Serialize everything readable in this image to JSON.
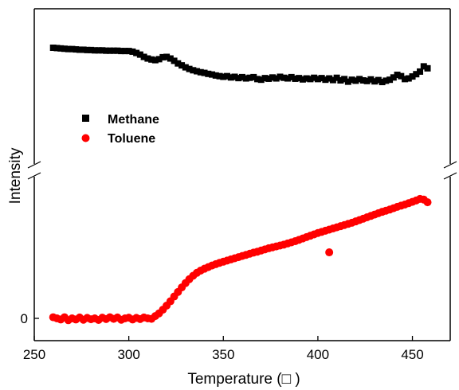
{
  "chart_data": {
    "type": "scatter",
    "title": "",
    "xlabel": "Temperature (□ )",
    "ylabel": "Intensity",
    "xlim": [
      250,
      470
    ],
    "xticks": [
      250,
      300,
      350,
      400,
      450
    ],
    "ytick_labels": [
      "0"
    ],
    "axis_break": true,
    "grid": false,
    "legend_position": "upper-left",
    "series": [
      {
        "name": "Methane",
        "marker": "square",
        "color": "#000000",
        "x": [
          260,
          262,
          264,
          266,
          268,
          270,
          272,
          274,
          276,
          278,
          280,
          282,
          284,
          286,
          288,
          290,
          292,
          294,
          296,
          298,
          300,
          302,
          304,
          306,
          308,
          310,
          312,
          314,
          316,
          318,
          320,
          322,
          324,
          326,
          328,
          330,
          332,
          334,
          336,
          338,
          340,
          342,
          344,
          346,
          348,
          350,
          352,
          354,
          356,
          358,
          360,
          362,
          364,
          366,
          368,
          370,
          372,
          374,
          376,
          378,
          380,
          382,
          384,
          386,
          388,
          390,
          392,
          394,
          396,
          398,
          400,
          402,
          404,
          406,
          408,
          410,
          412,
          414,
          416,
          418,
          420,
          422,
          424,
          426,
          428,
          430,
          432,
          434,
          436,
          438,
          440,
          442,
          444,
          446,
          448,
          450,
          452,
          454,
          456,
          458
        ],
        "y": [
          9.06,
          9.05,
          9.04,
          9.03,
          9.02,
          9.02,
          9.01,
          9.0,
          9.0,
          8.99,
          8.99,
          8.98,
          8.98,
          8.98,
          8.97,
          8.97,
          8.97,
          8.97,
          8.96,
          8.96,
          8.96,
          8.94,
          8.9,
          8.85,
          8.78,
          8.73,
          8.7,
          8.68,
          8.71,
          8.77,
          8.78,
          8.73,
          8.66,
          8.58,
          8.52,
          8.46,
          8.41,
          8.37,
          8.34,
          8.31,
          8.29,
          8.26,
          8.24,
          8.21,
          8.19,
          8.17,
          8.19,
          8.15,
          8.17,
          8.13,
          8.16,
          8.12,
          8.14,
          8.16,
          8.1,
          8.08,
          8.13,
          8.11,
          8.15,
          8.12,
          8.17,
          8.14,
          8.12,
          8.16,
          8.11,
          8.13,
          8.09,
          8.12,
          8.1,
          8.14,
          8.1,
          8.13,
          8.08,
          8.12,
          8.07,
          8.14,
          8.06,
          8.1,
          8.02,
          8.08,
          8.05,
          8.1,
          8.06,
          8.04,
          8.09,
          8.03,
          8.07,
          8.01,
          8.05,
          8.08,
          8.15,
          8.23,
          8.19,
          8.1,
          8.12,
          8.18,
          8.25,
          8.33,
          8.49,
          8.43
        ]
      },
      {
        "name": "Toluene",
        "marker": "circle",
        "color": "#ff0000",
        "x": [
          260,
          262,
          264,
          266,
          268,
          270,
          272,
          274,
          276,
          278,
          280,
          282,
          284,
          286,
          288,
          290,
          292,
          294,
          296,
          298,
          300,
          302,
          304,
          306,
          308,
          310,
          312,
          314,
          316,
          318,
          320,
          322,
          324,
          326,
          328,
          330,
          332,
          334,
          336,
          338,
          340,
          342,
          344,
          346,
          348,
          350,
          352,
          354,
          356,
          358,
          360,
          362,
          364,
          366,
          368,
          370,
          372,
          374,
          376,
          378,
          380,
          382,
          384,
          386,
          388,
          390,
          392,
          394,
          396,
          398,
          400,
          402,
          404,
          406,
          408,
          410,
          412,
          414,
          416,
          418,
          420,
          422,
          424,
          426,
          428,
          430,
          432,
          434,
          436,
          438,
          440,
          442,
          444,
          446,
          448,
          450,
          452,
          454,
          456,
          458,
          406
        ],
        "y": [
          0.05,
          0.0,
          -0.05,
          0.05,
          -0.08,
          0.0,
          -0.05,
          0.04,
          -0.06,
          0.02,
          -0.04,
          0.0,
          -0.07,
          0.03,
          -0.03,
          0.05,
          -0.02,
          0.04,
          -0.06,
          0.0,
          0.03,
          -0.05,
          0.02,
          -0.03,
          0.04,
          0.0,
          -0.02,
          0.1,
          0.22,
          0.38,
          0.56,
          0.75,
          0.96,
          1.16,
          1.36,
          1.55,
          1.72,
          1.87,
          2.0,
          2.1,
          2.18,
          2.25,
          2.32,
          2.38,
          2.44,
          2.49,
          2.54,
          2.59,
          2.64,
          2.69,
          2.74,
          2.79,
          2.84,
          2.89,
          2.93,
          2.98,
          3.03,
          3.08,
          3.12,
          3.16,
          3.2,
          3.24,
          3.29,
          3.34,
          3.39,
          3.45,
          3.51,
          3.57,
          3.63,
          3.69,
          3.75,
          3.8,
          3.85,
          3.9,
          3.95,
          4.0,
          4.05,
          4.1,
          4.15,
          4.2,
          4.26,
          4.32,
          4.38,
          4.44,
          4.5,
          4.56,
          4.62,
          4.68,
          4.73,
          4.78,
          4.84,
          4.9,
          4.95,
          5.0,
          5.06,
          5.12,
          5.18,
          5.25,
          5.22,
          5.1,
          2.9
        ]
      }
    ]
  }
}
